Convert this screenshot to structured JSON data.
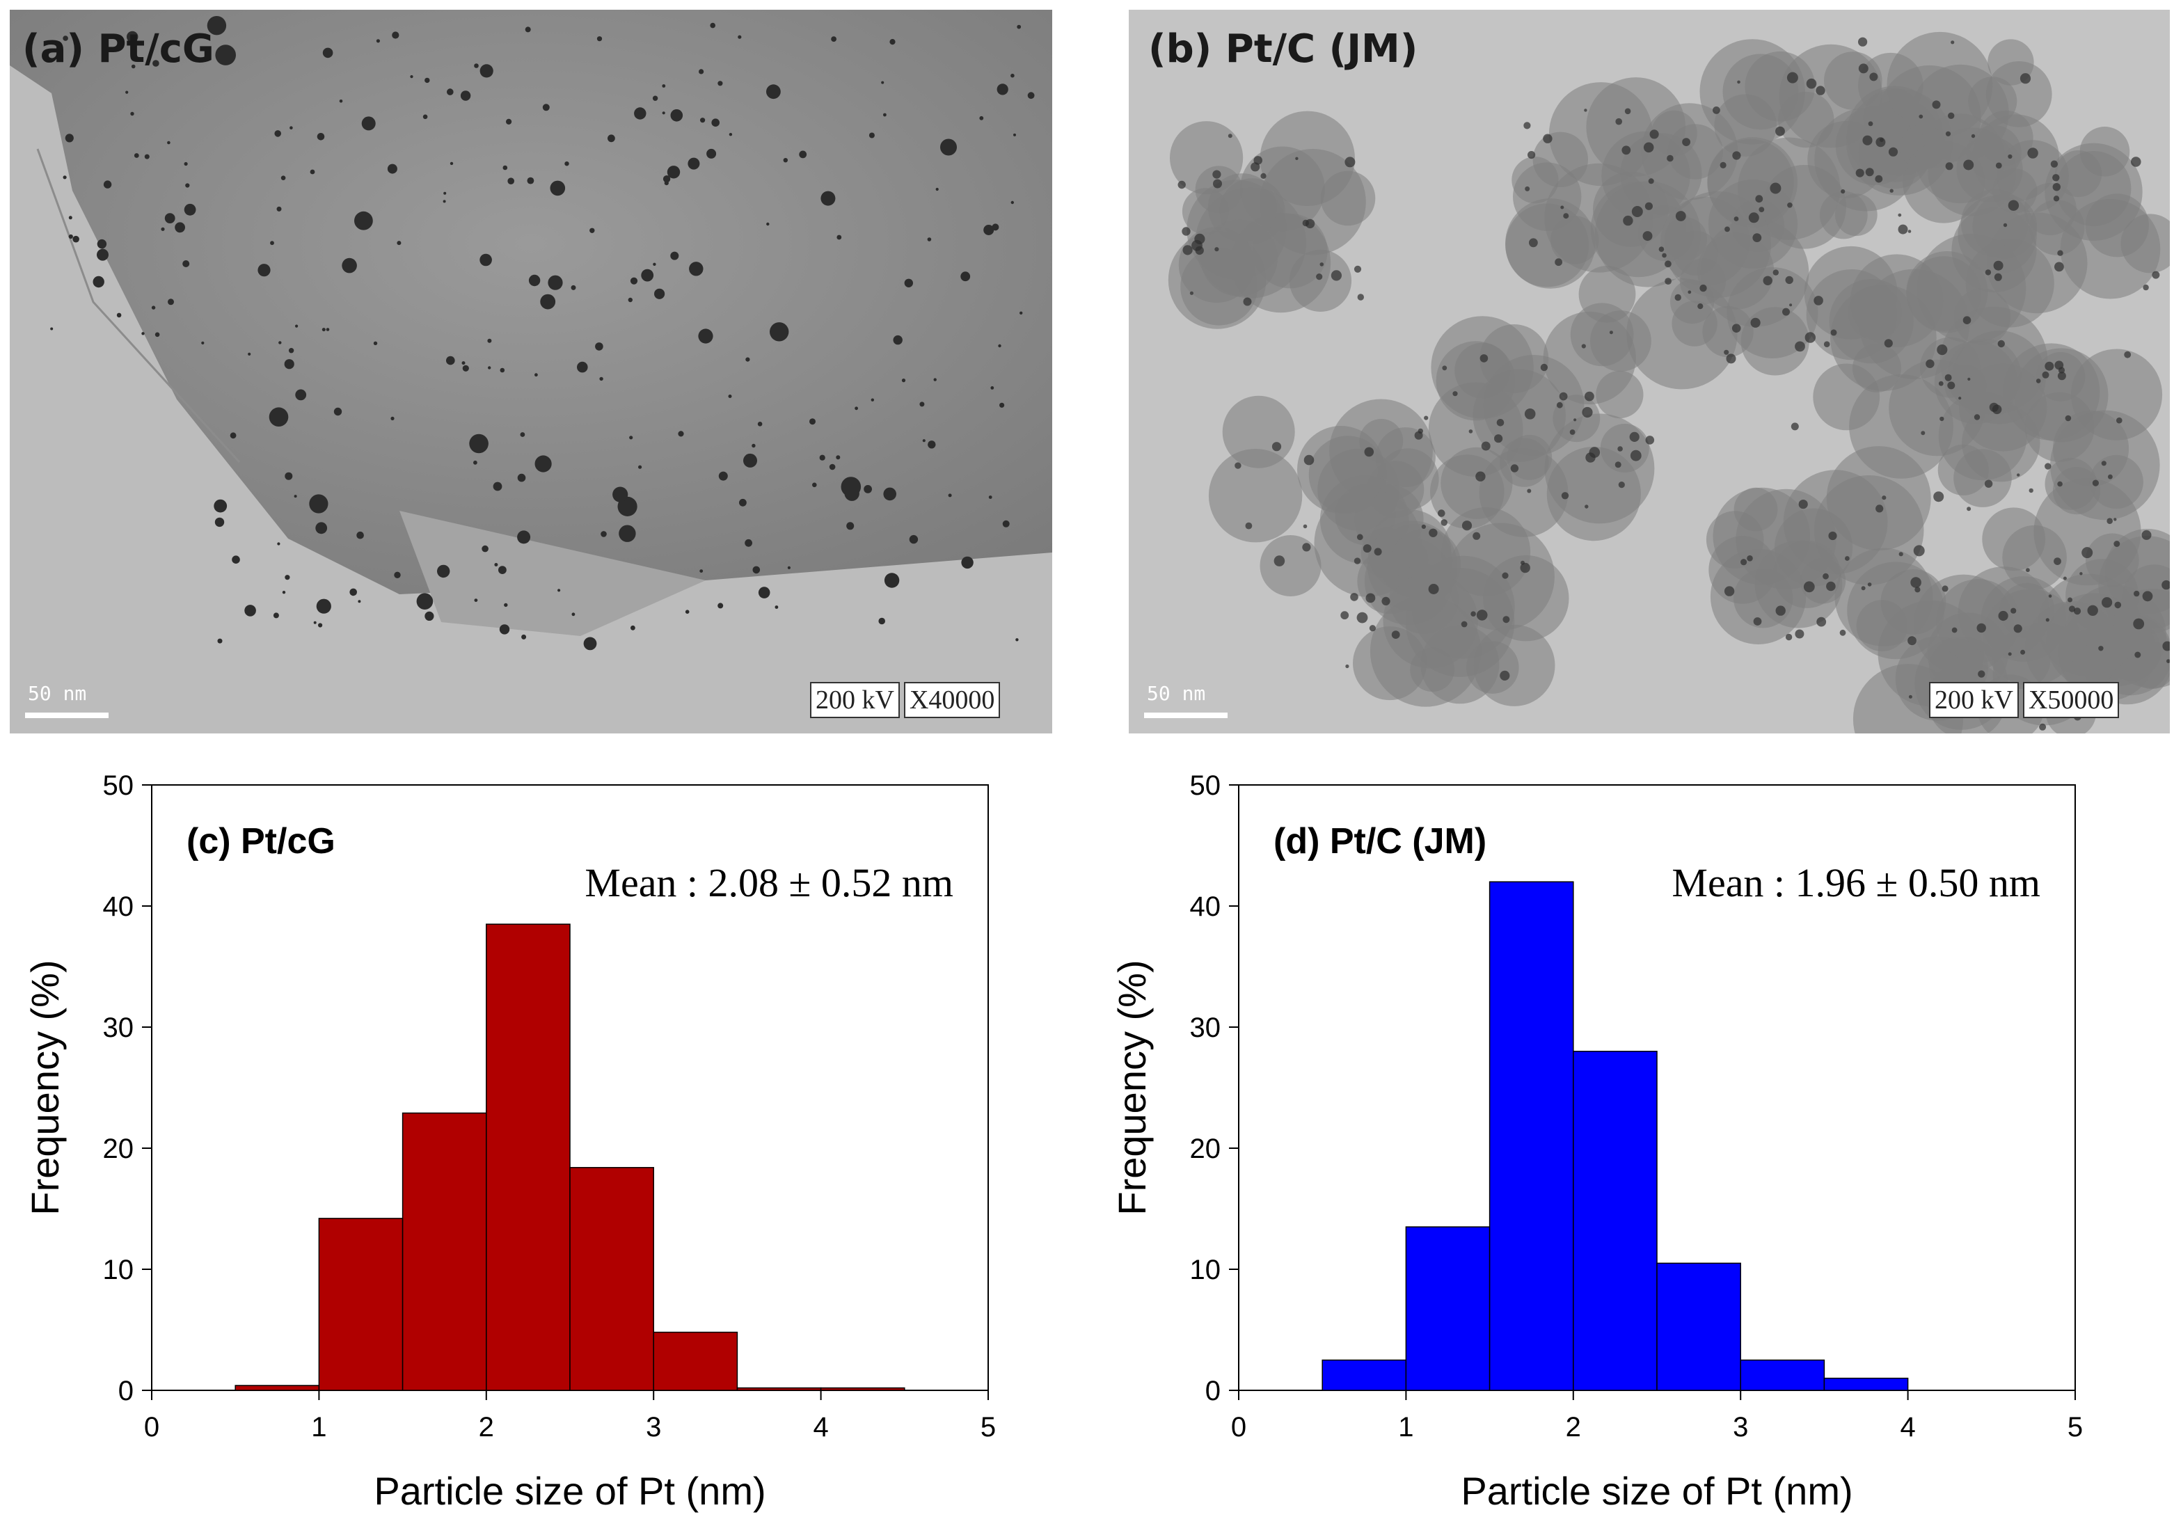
{
  "tem_panels": [
    {
      "label": "(a) Pt/cG",
      "scale_label": "50  nm",
      "voltage": "200 kV",
      "magnification": "X40000"
    },
    {
      "label": "(b) Pt/C (JM)",
      "scale_label": "50  nm",
      "voltage": "200 kV",
      "magnification": "X50000"
    }
  ],
  "colors": {
    "pt_cg": "#b00000",
    "pt_c_jm": "#0000ff"
  },
  "chart_data": [
    {
      "type": "bar",
      "title": "(c) Pt/cG",
      "annotation": "Mean : 2.08 ± 0.52 nm",
      "xlabel": "Particle size of Pt (nm)",
      "ylabel": "Frequency (%)",
      "xlim": [
        0,
        5
      ],
      "ylim": [
        0,
        50
      ],
      "xticks": [
        "0",
        "1",
        "2",
        "3",
        "4",
        "5"
      ],
      "yticks": [
        "0",
        "10",
        "20",
        "30",
        "40",
        "50"
      ],
      "bin_width": 0.5,
      "bins": [
        0.5,
        1.0,
        1.5,
        2.0,
        2.5,
        3.0,
        3.5,
        4.0
      ],
      "values": [
        0.4,
        14.2,
        22.9,
        38.5,
        18.4,
        4.8,
        0.2,
        0.2
      ],
      "color": "#b00000"
    },
    {
      "type": "bar",
      "title": "(d) Pt/C (JM)",
      "annotation": "Mean : 1.96 ± 0.50 nm",
      "xlabel": "Particle size of Pt (nm)",
      "ylabel": "Frequency (%)",
      "xlim": [
        0,
        5
      ],
      "ylim": [
        0,
        50
      ],
      "xticks": [
        "0",
        "1",
        "2",
        "3",
        "4",
        "5"
      ],
      "yticks": [
        "0",
        "10",
        "20",
        "30",
        "40",
        "50"
      ],
      "bin_width": 0.5,
      "bins": [
        0.5,
        1.0,
        1.5,
        2.0,
        2.5,
        3.0,
        3.5
      ],
      "values": [
        2.5,
        13.5,
        42.0,
        28.0,
        10.5,
        2.5,
        1.0
      ],
      "color": "#0000ff"
    }
  ]
}
